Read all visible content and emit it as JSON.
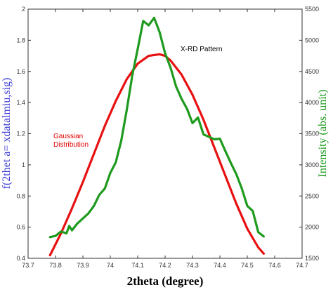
{
  "chart_data": {
    "type": "line",
    "xlabel": "2theta (degree)",
    "ylabel_left": "f(2thet a= xdatalmiu,sig)",
    "ylabel_right": "Intensity (abs. unit)",
    "xlim": [
      73.7,
      74.7
    ],
    "ylim_left": [
      0.4,
      2.0
    ],
    "ylim_right": [
      1500,
      5500
    ],
    "x_ticks": [
      "73.7",
      "73.8",
      "73.9",
      "74",
      "74.1",
      "74.2",
      "74.3",
      "74.4",
      "74.5",
      "74.6",
      "74.7"
    ],
    "y_left_ticks": [
      "0.4",
      "0.6",
      "0.8",
      "1",
      "1.2",
      "1.4",
      "1.6",
      "1.8",
      "2"
    ],
    "y_right_ticks": [
      "1500",
      "2000",
      "2500",
      "3000",
      "3500",
      "4000",
      "4500",
      "5000",
      "5500"
    ],
    "grid": false,
    "colors": {
      "gaussian": "#e81010",
      "xrd": "#1e9a1e",
      "left_axis": "#3d3dd6",
      "right_axis": "#1a9a1a"
    },
    "annotations": {
      "gaussian": [
        "Gaussian",
        "Distribution"
      ],
      "xrd": "X-RD Pattern"
    },
    "series": [
      {
        "axis": "left",
        "x": [
          73.78,
          73.82,
          73.86,
          73.9,
          73.94,
          73.98,
          74.02,
          74.06,
          74.1,
          74.14,
          74.18,
          74.2,
          74.22,
          74.26,
          74.3,
          74.34,
          74.38,
          74.42,
          74.46,
          74.5,
          74.54,
          74.56
        ],
        "values": [
          0.42,
          0.56,
          0.72,
          0.89,
          1.07,
          1.25,
          1.41,
          1.55,
          1.65,
          1.7,
          1.71,
          1.7,
          1.67,
          1.58,
          1.45,
          1.29,
          1.11,
          0.93,
          0.75,
          0.59,
          0.47,
          0.43
        ]
      },
      {
        "axis": "right",
        "x": [
          73.78,
          73.8,
          73.82,
          73.84,
          73.85,
          73.86,
          73.88,
          73.9,
          73.92,
          73.94,
          73.96,
          73.98,
          74.0,
          74.02,
          74.04,
          74.06,
          74.08,
          74.1,
          74.12,
          74.14,
          74.16,
          74.18,
          74.2,
          74.22,
          74.24,
          74.26,
          74.28,
          74.3,
          74.32,
          74.34,
          74.36,
          74.38,
          74.4,
          74.42,
          74.44,
          74.46,
          74.48,
          74.5,
          74.52,
          74.54,
          74.56
        ],
        "values": [
          1840,
          1860,
          1930,
          1900,
          2020,
          1950,
          2060,
          2140,
          2220,
          2340,
          2520,
          2620,
          2870,
          3040,
          3390,
          3880,
          4430,
          4860,
          5310,
          5240,
          5360,
          5130,
          4790,
          4560,
          4260,
          4060,
          3900,
          3670,
          3760,
          3490,
          3450,
          3410,
          3420,
          3220,
          3030,
          2850,
          2620,
          2340,
          2260,
          1920,
          1850
        ]
      }
    ]
  }
}
